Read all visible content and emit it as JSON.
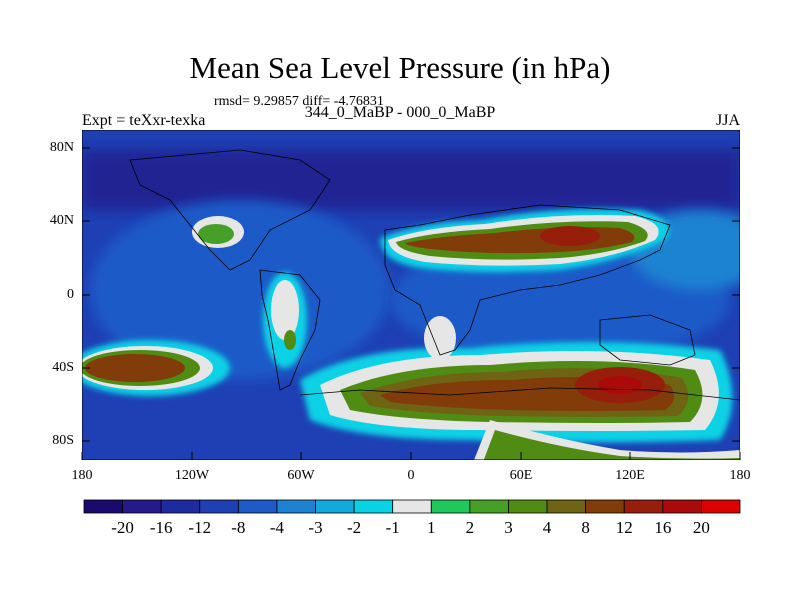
{
  "title": "Mean Sea Level Pressure (in hPa)",
  "stats": "rmsd= 9.29857 diff= -4.76831",
  "subtitle": "344_0_MaBP - 000_0_MaBP",
  "left_label": "Expt = teXxr-texka",
  "right_label": "JJA",
  "y_ticks": [
    "80N",
    "40N",
    "0",
    "40S",
    "80S"
  ],
  "x_ticks": [
    "180",
    "120W",
    "60W",
    "0",
    "60E",
    "120E",
    "180"
  ],
  "colorbar": {
    "labels": [
      "-20",
      "-16",
      "-12",
      "-8",
      "-4",
      "-3",
      "-2",
      "-1",
      "1",
      "2",
      "3",
      "4",
      "8",
      "12",
      "16",
      "20"
    ],
    "colors": [
      "#1a0a6e",
      "#241a8c",
      "#1e2aa0",
      "#1e40b4",
      "#1e5ac8",
      "#1e82d2",
      "#12aadc",
      "#0ad2e6",
      "#e6e6e6",
      "#1ec85a",
      "#46a028",
      "#508c14",
      "#6e6414",
      "#823c0a",
      "#961e0a",
      "#aa0a0a",
      "#dc0000"
    ]
  },
  "map": {
    "background_color": "#1e40b4",
    "positive_core_color": "#823c0a",
    "positive_peak_color": "#aa0a0a",
    "transition_color": "#e6e6e6",
    "cyan_color": "#0ad2e6"
  }
}
